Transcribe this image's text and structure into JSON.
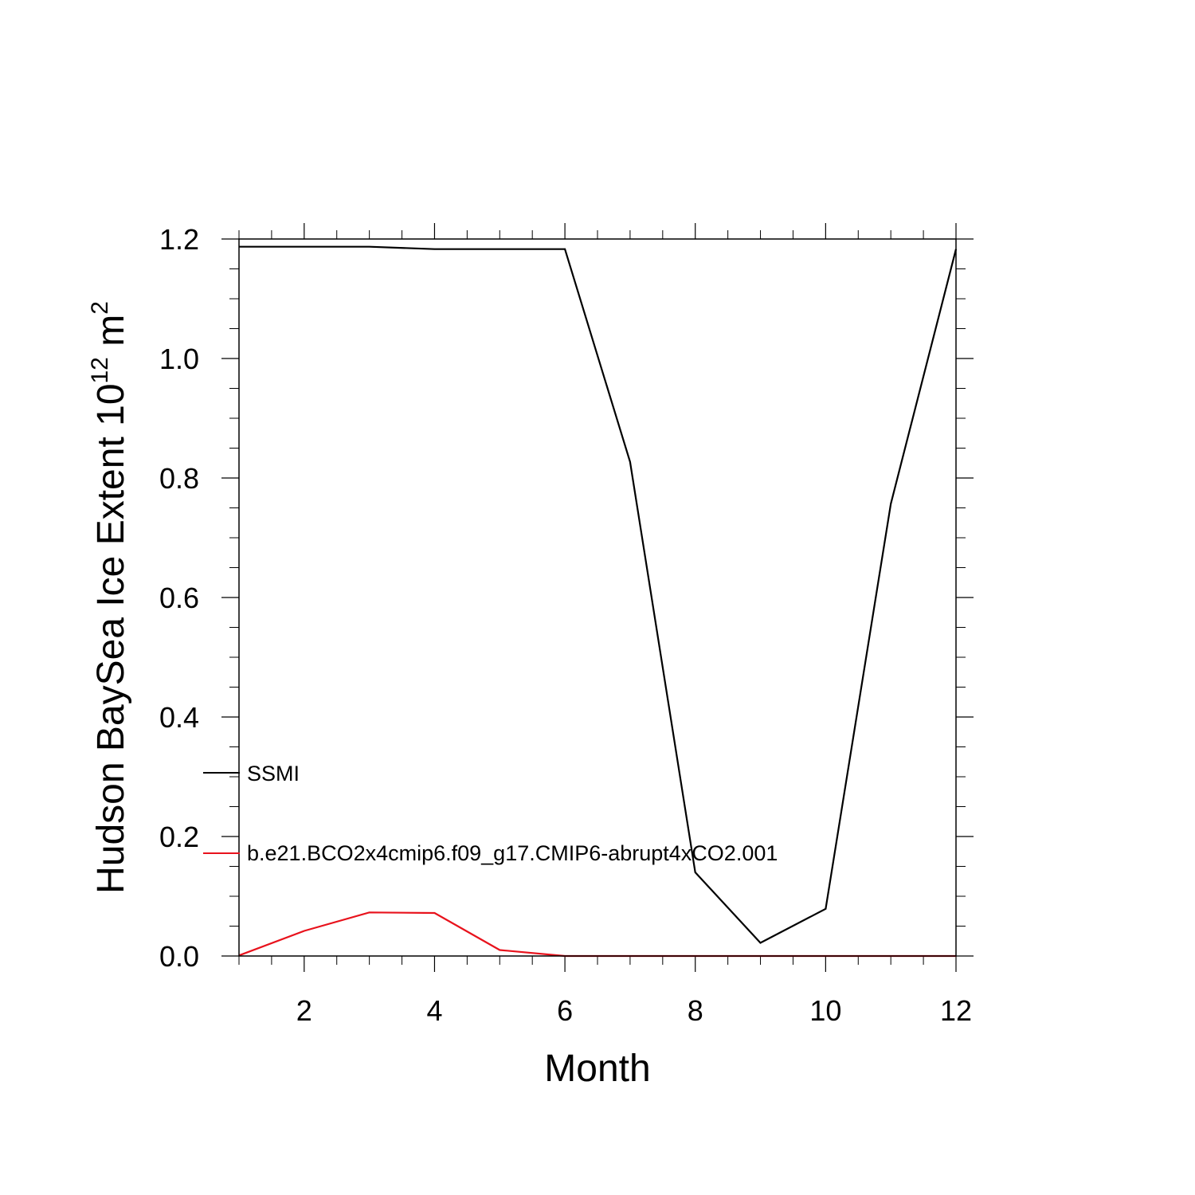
{
  "chart_data": {
    "type": "line",
    "title": "",
    "xlabel": "Month",
    "ylabel": {
      "prefix": "Hudson BaySea Ice Extent 10",
      "exponent": "12",
      "unit": " m",
      "unit_exponent": "2"
    },
    "xlim": [
      1,
      12
    ],
    "ylim": [
      0,
      1.2
    ],
    "x_ticks": [
      2,
      4,
      6,
      8,
      10,
      12
    ],
    "x_tick_labels": [
      "2",
      "4",
      "6",
      "8",
      "10",
      "12"
    ],
    "y_ticks": [
      0.0,
      0.2,
      0.4,
      0.6,
      0.8,
      1.0,
      1.2
    ],
    "y_tick_labels": [
      "0.0",
      "0.2",
      "0.4",
      "0.6",
      "0.8",
      "1.0",
      "1.2"
    ],
    "x": [
      1,
      2,
      3,
      4,
      5,
      6,
      7,
      8,
      9,
      10,
      11,
      12
    ],
    "series": [
      {
        "name": "SSMI",
        "color": "#000000",
        "values": [
          1.187,
          1.187,
          1.187,
          1.183,
          1.183,
          1.183,
          0.827,
          0.14,
          0.022,
          0.079,
          0.757,
          1.183
        ]
      },
      {
        "name": "b.e21.BCO2x4cmip6.f09_g17.CMIP6-abrupt4xCO2.001",
        "color": "#e8121c",
        "values": [
          0.001,
          0.042,
          0.073,
          0.072,
          0.01,
          0.0,
          0.0,
          0.0,
          0.0,
          0.0,
          0.0,
          0.0
        ]
      }
    ],
    "grid": false,
    "legend_position": "left-inside-bottom"
  }
}
